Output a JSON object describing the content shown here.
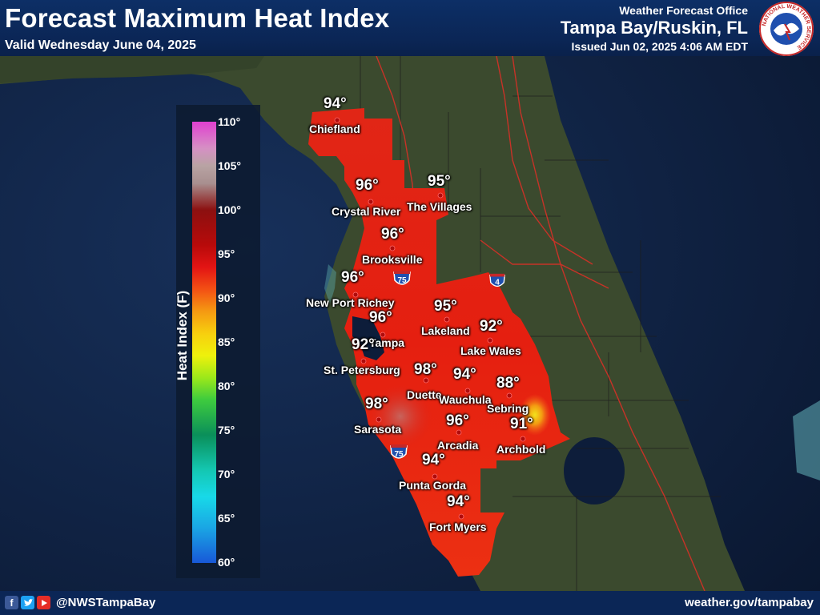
{
  "header": {
    "title": "Forecast Maximum Heat Index",
    "valid": "Valid Wednesday June 04, 2025",
    "office_label": "Weather Forecast Office",
    "office_name": "Tampa Bay/Ruskin, FL",
    "issued": "Issued Jun 02, 2025 4:06 AM EDT",
    "logo_icon": "nws-logo-icon",
    "logo_text": "NATIONAL WEATHER SERVICE"
  },
  "legend": {
    "title": "Heat Index (F)",
    "ticks": [
      "110°",
      "105°",
      "100°",
      "95°",
      "90°",
      "85°",
      "80°",
      "75°",
      "70°",
      "65°",
      "60°"
    ]
  },
  "forecast": {
    "values": [
      {
        "city": "Chiefland",
        "value": "94°"
      },
      {
        "city": "Crystal River",
        "value": "96°"
      },
      {
        "city": "The Villages",
        "value": "95°"
      },
      {
        "city": "Brooksville",
        "value": "96°"
      },
      {
        "city": "New Port Richey",
        "value": "96°"
      },
      {
        "city": "Lakeland",
        "value": "95°"
      },
      {
        "city": "Tampa",
        "value": "96°"
      },
      {
        "city": "Lake Wales",
        "value": "92°"
      },
      {
        "city": "St. Petersburg",
        "value": "92°"
      },
      {
        "city": "Duette",
        "value": "98°"
      },
      {
        "city": "Wauchula",
        "value": "94°"
      },
      {
        "city": "Sebring",
        "value": "88°"
      },
      {
        "city": "Sarasota",
        "value": "98°"
      },
      {
        "city": "Arcadia",
        "value": "96°"
      },
      {
        "city": "Archbold",
        "value": "91°"
      },
      {
        "city": "Punta Gorda",
        "value": "94°"
      },
      {
        "city": "Fort Myers",
        "value": "94°"
      }
    ]
  },
  "highways": {
    "i75": "75",
    "i4": "4"
  },
  "footer": {
    "handle": "@NWSTampaBay",
    "website": "weather.gov/tampabay",
    "social_icons": [
      "facebook-icon",
      "twitter-icon",
      "youtube-icon"
    ]
  },
  "colors": {
    "header_bg": "#0b2656",
    "ocean": "#0c1a33",
    "land": "#3b4a2e",
    "heat_red": "#e42010",
    "heat_dark": "#c00d0d",
    "highway_shield": "#1f4fae"
  }
}
